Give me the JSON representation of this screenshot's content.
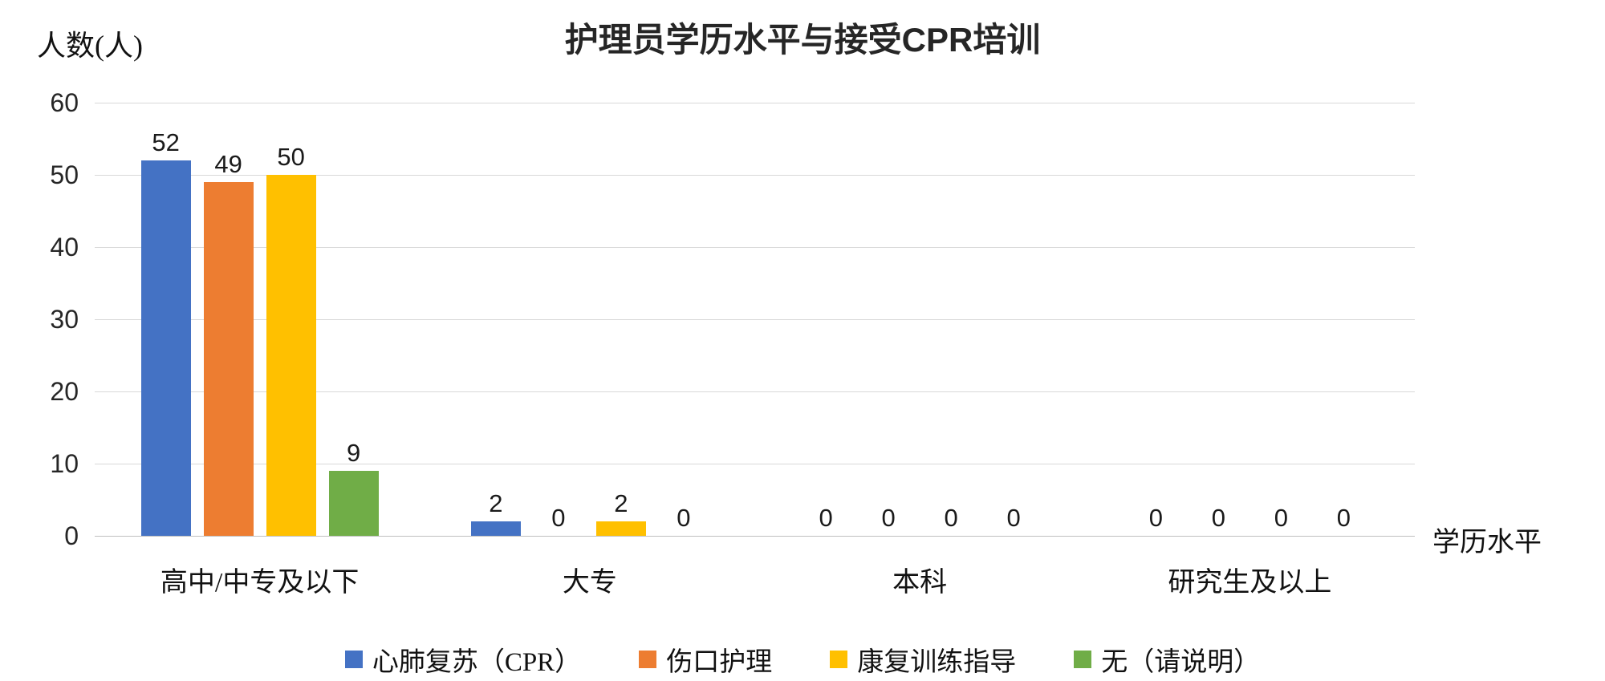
{
  "chart_data": {
    "type": "bar",
    "title": "护理员学历水平与接受CPR培训",
    "ylabel": "人数(人)",
    "xlabel": "学历水平",
    "categories": [
      "高中/中专及以下",
      "大专",
      "本科",
      "研究生及以上"
    ],
    "series": [
      {
        "name": "心肺复苏（CPR）",
        "color": "#4472C4",
        "values": [
          52,
          2,
          0,
          0
        ]
      },
      {
        "name": "伤口护理",
        "color": "#ED7D31",
        "values": [
          49,
          0,
          0,
          0
        ]
      },
      {
        "name": "康复训练指导",
        "color": "#FFC000",
        "values": [
          50,
          2,
          0,
          0
        ]
      },
      {
        "name": "无（请说明）",
        "color": "#70AD47",
        "values": [
          9,
          0,
          0,
          0
        ]
      }
    ],
    "ylim": [
      0,
      60
    ],
    "ytick_step": 10,
    "grid": true,
    "legend_position": "bottom",
    "gridline_color": "#D9D9D9"
  }
}
